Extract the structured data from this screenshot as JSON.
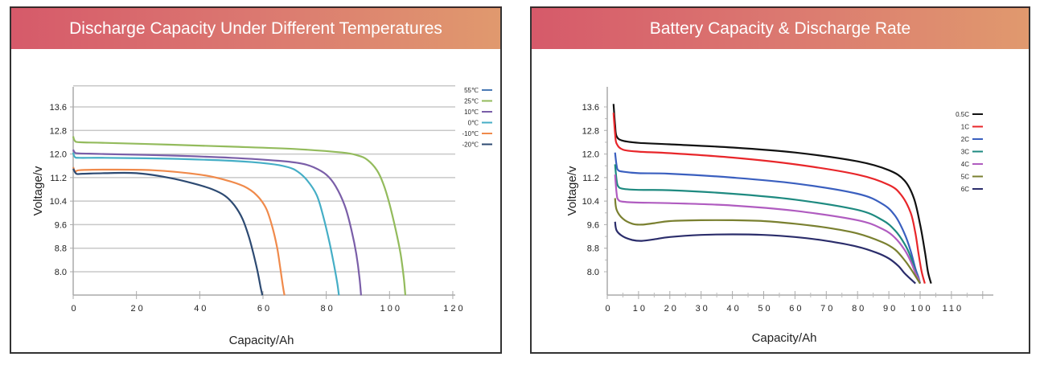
{
  "chart_data": [
    {
      "type": "line",
      "title": "Discharge Capacity Under Different Temperatures",
      "xlabel": "Capacity/Ah",
      "ylabel": "Voltage/v",
      "xlim": [
        0,
        120
      ],
      "ylim": [
        7.2,
        14.4
      ],
      "xticks": [
        "0",
        "20",
        "40",
        "60",
        "80",
        "100",
        "120"
      ],
      "yticks": [
        "13.6",
        "12.8",
        "12.0",
        "11.2",
        "10.4",
        "9.6",
        "8.8",
        "8.0"
      ],
      "grid": "horizontal",
      "legend_position": "top-right",
      "series": [
        {
          "name": "55℃",
          "color": "#4a7ab5",
          "x": [],
          "y": []
        },
        {
          "name": "25℃",
          "color": "#93bb5c",
          "x": [
            0,
            0.5,
            2,
            10,
            30,
            50,
            70,
            85,
            90,
            93,
            96,
            98,
            100,
            102,
            103.5,
            104.5,
            105
          ],
          "y": [
            12.6,
            12.45,
            12.4,
            12.38,
            12.32,
            12.25,
            12.17,
            12.05,
            11.95,
            11.8,
            11.45,
            11.0,
            10.3,
            9.4,
            8.6,
            7.8,
            7.2
          ]
        },
        {
          "name": "10℃",
          "color": "#7a5ea8",
          "x": [
            0,
            0.5,
            2,
            10,
            30,
            50,
            65,
            72,
            76,
            80,
            83,
            86,
            88,
            89.5,
            90.5,
            91
          ],
          "y": [
            12.15,
            12.05,
            12.02,
            12.0,
            11.95,
            11.87,
            11.77,
            11.68,
            11.55,
            11.3,
            10.9,
            10.2,
            9.4,
            8.6,
            7.8,
            7.2
          ]
        },
        {
          "name": "0℃",
          "color": "#45aec6",
          "x": [
            0,
            0.5,
            2,
            10,
            30,
            50,
            62,
            68,
            71,
            74,
            77,
            79,
            81,
            82.5,
            83.5,
            84
          ],
          "y": [
            12.05,
            11.9,
            11.87,
            11.87,
            11.84,
            11.77,
            11.67,
            11.55,
            11.4,
            11.1,
            10.6,
            9.9,
            9.0,
            8.2,
            7.6,
            7.2
          ]
        },
        {
          "name": "-10℃",
          "color": "#f08a4b",
          "x": [
            0,
            0.7,
            2,
            10,
            25,
            40,
            48,
            54,
            58,
            61,
            63,
            64.5,
            65.5,
            66.3,
            66.8
          ],
          "y": [
            11.55,
            11.4,
            11.45,
            11.47,
            11.45,
            11.3,
            11.12,
            10.9,
            10.6,
            10.15,
            9.5,
            8.8,
            8.1,
            7.5,
            7.2
          ]
        },
        {
          "name": "-20℃",
          "color": "#2d4a72",
          "x": [
            0,
            1,
            3,
            10,
            20,
            30,
            38,
            44,
            48,
            51,
            53.5,
            55.5,
            57,
            58.3,
            59.2,
            59.8
          ],
          "y": [
            11.5,
            11.33,
            11.33,
            11.35,
            11.35,
            11.2,
            11.0,
            10.8,
            10.58,
            10.25,
            9.8,
            9.2,
            8.6,
            8.0,
            7.5,
            7.2
          ]
        }
      ]
    },
    {
      "type": "line",
      "title": "Battery Capacity & Discharge Rate",
      "xlabel": "Capacity/Ah",
      "ylabel": "Voltage/v",
      "xlim": [
        0,
        120
      ],
      "ylim": [
        7.2,
        14.4
      ],
      "xticks": [
        "0",
        "10",
        "20",
        "30",
        "40",
        "50",
        "60",
        "70",
        "80",
        "90",
        "100",
        "110"
      ],
      "yticks": [
        "13.6",
        "12.8",
        "12.0",
        "11.2",
        "10.4",
        "9.6",
        "8.8",
        "8.0"
      ],
      "grid": "none",
      "legend_position": "top-right",
      "series": [
        {
          "name": "0.5C",
          "color": "#111111",
          "x": [
            2,
            2.5,
            3,
            5,
            10,
            20,
            40,
            60,
            80,
            90,
            95,
            98,
            100,
            101.5,
            102.5,
            103.5
          ],
          "y": [
            13.7,
            13.0,
            12.6,
            12.45,
            12.38,
            12.33,
            12.22,
            12.05,
            11.75,
            11.45,
            11.1,
            10.5,
            9.6,
            8.7,
            8.0,
            7.6
          ]
        },
        {
          "name": "1C",
          "color": "#e8262a",
          "x": [
            2,
            2.5,
            3,
            5,
            10,
            20,
            40,
            60,
            80,
            90,
            94,
            97,
            98.5,
            99.5,
            100.5,
            101.5
          ],
          "y": [
            13.4,
            12.7,
            12.35,
            12.15,
            12.08,
            12.03,
            11.88,
            11.65,
            11.3,
            10.95,
            10.6,
            10.0,
            9.3,
            8.6,
            8.0,
            7.6
          ]
        },
        {
          "name": "2C",
          "color": "#3a5fbf",
          "x": [
            2.5,
            3,
            3.5,
            5,
            10,
            20,
            40,
            60,
            80,
            88,
            92,
            95,
            97,
            98.5,
            99.5,
            100
          ],
          "y": [
            12.05,
            11.6,
            11.45,
            11.4,
            11.35,
            11.33,
            11.2,
            11.0,
            10.65,
            10.3,
            9.9,
            9.3,
            8.7,
            8.1,
            7.8,
            7.6
          ]
        },
        {
          "name": "3C",
          "color": "#1e8a80",
          "x": [
            2.5,
            3,
            3.5,
            5,
            10,
            20,
            40,
            60,
            80,
            88,
            92,
            95,
            97,
            98.5,
            99.5,
            100
          ],
          "y": [
            11.65,
            11.1,
            10.9,
            10.82,
            10.78,
            10.77,
            10.65,
            10.45,
            10.1,
            9.75,
            9.4,
            8.95,
            8.5,
            8.0,
            7.75,
            7.6
          ]
        },
        {
          "name": "4C",
          "color": "#b05cc0",
          "x": [
            2.5,
            3,
            3.5,
            5,
            10,
            20,
            40,
            60,
            80,
            88,
            92,
            95,
            97,
            98.5,
            99.5,
            100
          ],
          "y": [
            11.3,
            10.65,
            10.45,
            10.38,
            10.35,
            10.33,
            10.25,
            10.07,
            9.75,
            9.45,
            9.15,
            8.75,
            8.35,
            7.95,
            7.75,
            7.6
          ]
        },
        {
          "name": "5C",
          "color": "#7a8030",
          "x": [
            2.5,
            3,
            5,
            8,
            11,
            15,
            20,
            30,
            40,
            50,
            60,
            70,
            80,
            88,
            92,
            95,
            97,
            98.5,
            100
          ],
          "y": [
            10.5,
            10.1,
            9.8,
            9.63,
            9.6,
            9.65,
            9.72,
            9.75,
            9.75,
            9.72,
            9.63,
            9.5,
            9.3,
            9.0,
            8.75,
            8.4,
            8.1,
            7.85,
            7.6
          ]
        },
        {
          "name": "6C",
          "color": "#2b2d6b",
          "x": [
            2.5,
            3,
            5,
            8,
            11,
            15,
            20,
            30,
            40,
            50,
            60,
            70,
            80,
            86,
            90,
            93,
            95,
            97,
            98.5
          ],
          "y": [
            9.7,
            9.4,
            9.2,
            9.08,
            9.05,
            9.1,
            9.18,
            9.25,
            9.27,
            9.25,
            9.18,
            9.05,
            8.85,
            8.65,
            8.45,
            8.2,
            7.95,
            7.75,
            7.6
          ]
        }
      ]
    }
  ]
}
